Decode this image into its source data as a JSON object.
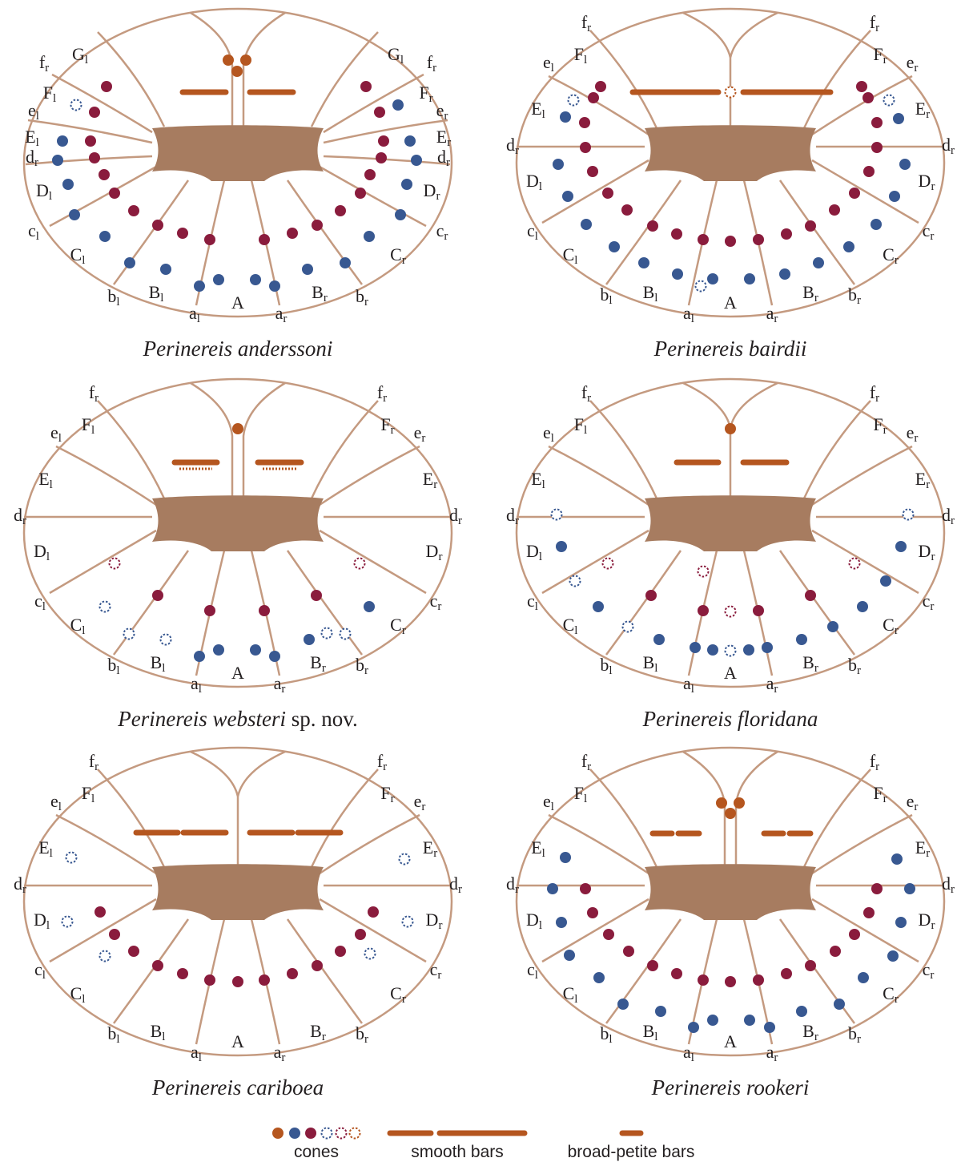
{
  "panels": [
    {
      "caption": {
        "italic": "Perinereis anderssoni"
      },
      "labels": [
        {
          "text": "G",
          "sub": "l"
        },
        {
          "text": "f",
          "sub": "r"
        },
        {
          "text": "F",
          "sub": "l"
        },
        {
          "text": "e",
          "sub": "l"
        },
        {
          "text": "E",
          "sub": "l"
        },
        {
          "text": "d",
          "sub": "r"
        },
        {
          "text": "D",
          "sub": "l"
        },
        {
          "text": "c",
          "sub": "l"
        },
        {
          "text": "C",
          "sub": "l"
        },
        {
          "text": "b",
          "sub": "l"
        },
        {
          "text": "B",
          "sub": "l"
        },
        {
          "text": "a",
          "sub": "l"
        },
        {
          "text": "A"
        },
        {
          "text": "a",
          "sub": "r"
        },
        {
          "text": "B",
          "sub": "r"
        },
        {
          "text": "b",
          "sub": "r"
        },
        {
          "text": "C",
          "sub": "r"
        },
        {
          "text": "c",
          "sub": "r"
        },
        {
          "text": "D",
          "sub": "r"
        },
        {
          "text": "d",
          "sub": "r"
        },
        {
          "text": "E",
          "sub": "r"
        },
        {
          "text": "e",
          "sub": "r"
        },
        {
          "text": "F",
          "sub": "r"
        },
        {
          "text": "f",
          "sub": "r"
        },
        {
          "text": "G",
          "sub": "l"
        }
      ]
    },
    {
      "caption": {
        "italic": "Perinereis bairdii"
      },
      "labels": [
        {
          "text": "f",
          "sub": "r"
        },
        {
          "text": "F",
          "sub": "l"
        },
        {
          "text": "e",
          "sub": "l"
        },
        {
          "text": "E",
          "sub": "l"
        },
        {
          "text": "d",
          "sub": "r"
        },
        {
          "text": "D",
          "sub": "l"
        },
        {
          "text": "c",
          "sub": "l"
        },
        {
          "text": "C",
          "sub": "l"
        },
        {
          "text": "b",
          "sub": "l"
        },
        {
          "text": "B",
          "sub": "l"
        },
        {
          "text": "a",
          "sub": "l"
        },
        {
          "text": "A"
        },
        {
          "text": "a",
          "sub": "r"
        },
        {
          "text": "B",
          "sub": "r"
        },
        {
          "text": "b",
          "sub": "r"
        },
        {
          "text": "C",
          "sub": "r"
        },
        {
          "text": "c",
          "sub": "r"
        },
        {
          "text": "D",
          "sub": "r"
        },
        {
          "text": "d",
          "sub": "r"
        },
        {
          "text": "E",
          "sub": "r"
        },
        {
          "text": "e",
          "sub": "r"
        },
        {
          "text": "F",
          "sub": "r"
        },
        {
          "text": "f",
          "sub": "r"
        }
      ]
    },
    {
      "caption": {
        "italic": "Perinereis websteri",
        "plain": "sp. nov."
      },
      "labels": [
        {
          "text": "f",
          "sub": "r"
        },
        {
          "text": "F",
          "sub": "l"
        },
        {
          "text": "e",
          "sub": "l"
        },
        {
          "text": "E",
          "sub": "l"
        },
        {
          "text": "d",
          "sub": "r"
        },
        {
          "text": "D",
          "sub": "l"
        },
        {
          "text": "c",
          "sub": "l"
        },
        {
          "text": "C",
          "sub": "l"
        },
        {
          "text": "b",
          "sub": "l"
        },
        {
          "text": "B",
          "sub": "l"
        },
        {
          "text": "a",
          "sub": "l"
        },
        {
          "text": "A"
        },
        {
          "text": "a",
          "sub": "r"
        },
        {
          "text": "B",
          "sub": "r"
        },
        {
          "text": "b",
          "sub": "r"
        },
        {
          "text": "C",
          "sub": "r"
        },
        {
          "text": "c",
          "sub": "r"
        },
        {
          "text": "D",
          "sub": "r"
        },
        {
          "text": "d",
          "sub": "r"
        },
        {
          "text": "E",
          "sub": "r"
        },
        {
          "text": "e",
          "sub": "r"
        },
        {
          "text": "F",
          "sub": "r"
        },
        {
          "text": "f",
          "sub": "r"
        }
      ]
    },
    {
      "caption": {
        "italic": "Perinereis floridana"
      },
      "labels": [
        {
          "text": "f",
          "sub": "r"
        },
        {
          "text": "F",
          "sub": "l"
        },
        {
          "text": "e",
          "sub": "l"
        },
        {
          "text": "E",
          "sub": "l"
        },
        {
          "text": "d",
          "sub": "r"
        },
        {
          "text": "D",
          "sub": "l"
        },
        {
          "text": "c",
          "sub": "l"
        },
        {
          "text": "C",
          "sub": "l"
        },
        {
          "text": "b",
          "sub": "l"
        },
        {
          "text": "B",
          "sub": "l"
        },
        {
          "text": "a",
          "sub": "l"
        },
        {
          "text": "A"
        },
        {
          "text": "a",
          "sub": "r"
        },
        {
          "text": "B",
          "sub": "r"
        },
        {
          "text": "b",
          "sub": "r"
        },
        {
          "text": "C",
          "sub": "r"
        },
        {
          "text": "c",
          "sub": "r"
        },
        {
          "text": "D",
          "sub": "r"
        },
        {
          "text": "d",
          "sub": "r"
        },
        {
          "text": "E",
          "sub": "r"
        },
        {
          "text": "e",
          "sub": "r"
        },
        {
          "text": "F",
          "sub": "r"
        },
        {
          "text": "f",
          "sub": "r"
        }
      ]
    },
    {
      "caption": {
        "italic": "Perinereis cariboea"
      },
      "labels": [
        {
          "text": "f",
          "sub": "r"
        },
        {
          "text": "F",
          "sub": "l"
        },
        {
          "text": "e",
          "sub": "l"
        },
        {
          "text": "E",
          "sub": "l"
        },
        {
          "text": "d",
          "sub": "r"
        },
        {
          "text": "D",
          "sub": "l"
        },
        {
          "text": "c",
          "sub": "l"
        },
        {
          "text": "C",
          "sub": "l"
        },
        {
          "text": "b",
          "sub": "l"
        },
        {
          "text": "B",
          "sub": "l"
        },
        {
          "text": "a",
          "sub": "l"
        },
        {
          "text": "A"
        },
        {
          "text": "a",
          "sub": "r"
        },
        {
          "text": "B",
          "sub": "r"
        },
        {
          "text": "b",
          "sub": "r"
        },
        {
          "text": "C",
          "sub": "r"
        },
        {
          "text": "c",
          "sub": "r"
        },
        {
          "text": "D",
          "sub": "r"
        },
        {
          "text": "d",
          "sub": "r"
        },
        {
          "text": "E",
          "sub": "r"
        },
        {
          "text": "e",
          "sub": "r"
        },
        {
          "text": "F",
          "sub": "r"
        },
        {
          "text": "f",
          "sub": "r"
        }
      ]
    },
    {
      "caption": {
        "italic": "Perinereis rookeri"
      },
      "labels": [
        {
          "text": "f",
          "sub": "r"
        },
        {
          "text": "F",
          "sub": "l"
        },
        {
          "text": "e",
          "sub": "l"
        },
        {
          "text": "E",
          "sub": "l"
        },
        {
          "text": "d",
          "sub": "r"
        },
        {
          "text": "D",
          "sub": "l"
        },
        {
          "text": "c",
          "sub": "l"
        },
        {
          "text": "C",
          "sub": "l"
        },
        {
          "text": "b",
          "sub": "l"
        },
        {
          "text": "B",
          "sub": "l"
        },
        {
          "text": "a",
          "sub": "l"
        },
        {
          "text": "A"
        },
        {
          "text": "a",
          "sub": "r"
        },
        {
          "text": "B",
          "sub": "r"
        },
        {
          "text": "b",
          "sub": "r"
        },
        {
          "text": "C",
          "sub": "r"
        },
        {
          "text": "c",
          "sub": "r"
        },
        {
          "text": "D",
          "sub": "r"
        },
        {
          "text": "d",
          "sub": "r"
        },
        {
          "text": "E",
          "sub": "r"
        },
        {
          "text": "e",
          "sub": "r"
        },
        {
          "text": "F",
          "sub": "r"
        },
        {
          "text": "f",
          "sub": "r"
        }
      ]
    }
  ],
  "legend": {
    "cones": "cones",
    "smooth_bars": "smooth bars",
    "broad_petite_bars": "broad-petite bars"
  }
}
